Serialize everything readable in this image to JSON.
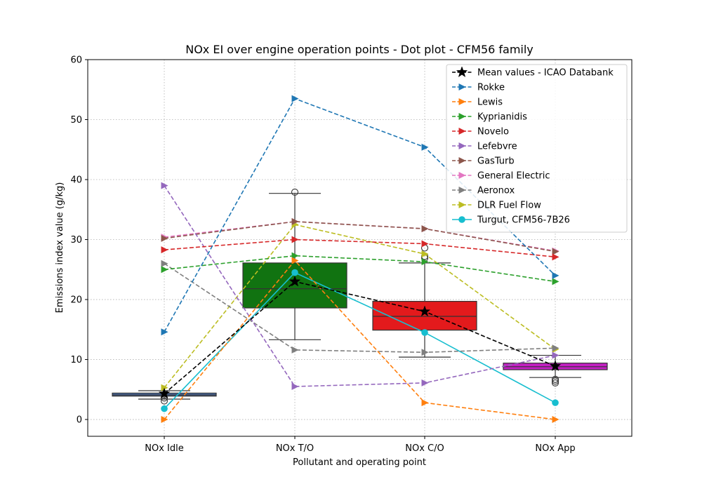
{
  "chart_data": {
    "type": "line",
    "title": "NOx EI over engine operation points - Dot plot - CFM56 family",
    "xlabel": "Pollutant and operating point",
    "ylabel": "Emissions index value (g/kg)",
    "categories": [
      "NOx Idle",
      "NOx T/O",
      "NOx C/O",
      "NOx App"
    ],
    "ylim": [
      -2.8,
      60
    ],
    "yticks": [
      0,
      10,
      20,
      30,
      40,
      50,
      60
    ],
    "grid": true,
    "legend_position": "top-right",
    "boxplots": [
      {
        "category": "NOx Idle",
        "color": "#4c72b0",
        "whisker_low": 3.4,
        "q1": 3.9,
        "median": 4.1,
        "q3": 4.4,
        "whisker_high": 4.8,
        "outliers": [
          3.1,
          3.6
        ]
      },
      {
        "category": "NOx T/O",
        "color": "#117311",
        "whisker_low": 13.3,
        "q1": 18.6,
        "median": 21.8,
        "q3": 26.1,
        "whisker_high": 37.7,
        "outliers": [
          37.9
        ]
      },
      {
        "category": "NOx C/O",
        "color": "#e31a1c",
        "whisker_low": 10.4,
        "q1": 14.9,
        "median": 17.2,
        "q3": 19.7,
        "whisker_high": 26.1,
        "outliers": [
          26.9,
          27.2,
          28.6
        ]
      },
      {
        "category": "NOx App",
        "color": "#c41fc4",
        "whisker_low": 7.0,
        "q1": 8.3,
        "median": 8.8,
        "q3": 9.4,
        "whisker_high": 10.7,
        "outliers": [
          6.1,
          6.4,
          6.7
        ]
      }
    ],
    "series": [
      {
        "name": "Mean values - ICAO Databank",
        "color": "#000000",
        "dash": "dashed",
        "marker": "star",
        "values": [
          4.3,
          23.0,
          18.0,
          8.9
        ]
      },
      {
        "name": "Rokke",
        "color": "#1f77b4",
        "dash": "dashed",
        "marker": "triangle-right",
        "values": [
          14.6,
          53.5,
          45.4,
          24.0
        ]
      },
      {
        "name": "Lewis",
        "color": "#ff7f0e",
        "dash": "dashed",
        "marker": "triangle-right",
        "values": [
          0.0,
          26.5,
          2.8,
          0.0
        ]
      },
      {
        "name": "Kyprianidis",
        "color": "#2ca02c",
        "dash": "dashed",
        "marker": "triangle-right",
        "values": [
          25.0,
          27.3,
          26.3,
          23.0
        ]
      },
      {
        "name": "Novelo",
        "color": "#d62728",
        "dash": "dashed",
        "marker": "triangle-right",
        "values": [
          28.3,
          30.0,
          29.3,
          27.1
        ]
      },
      {
        "name": "Lefebvre",
        "color": "#9467bd",
        "dash": "dashed",
        "marker": "triangle-right",
        "values": [
          39.0,
          5.5,
          6.1,
          10.7
        ]
      },
      {
        "name": "GasTurb",
        "color": "#8c564b",
        "dash": "dashed",
        "marker": "triangle-right",
        "values": [
          30.2,
          33.0,
          31.8,
          28.0
        ]
      },
      {
        "name": "General Electric",
        "color": "#e377c2",
        "dash": "dashed",
        "marker": "triangle-right",
        "values": [
          30.4,
          33.0,
          31.8,
          28.1
        ]
      },
      {
        "name": "Aeronox",
        "color": "#7f7f7f",
        "dash": "dashed",
        "marker": "triangle-right",
        "values": [
          26.0,
          11.6,
          11.2,
          11.9
        ]
      },
      {
        "name": "DLR Fuel Flow",
        "color": "#bcbd22",
        "dash": "dashed",
        "marker": "triangle-right",
        "values": [
          5.3,
          32.5,
          27.6,
          11.7
        ]
      },
      {
        "name": "Turgut, CFM56-7B26",
        "color": "#17becf",
        "dash": "solid",
        "marker": "circle",
        "values": [
          1.8,
          24.5,
          14.5,
          2.8
        ]
      }
    ]
  }
}
